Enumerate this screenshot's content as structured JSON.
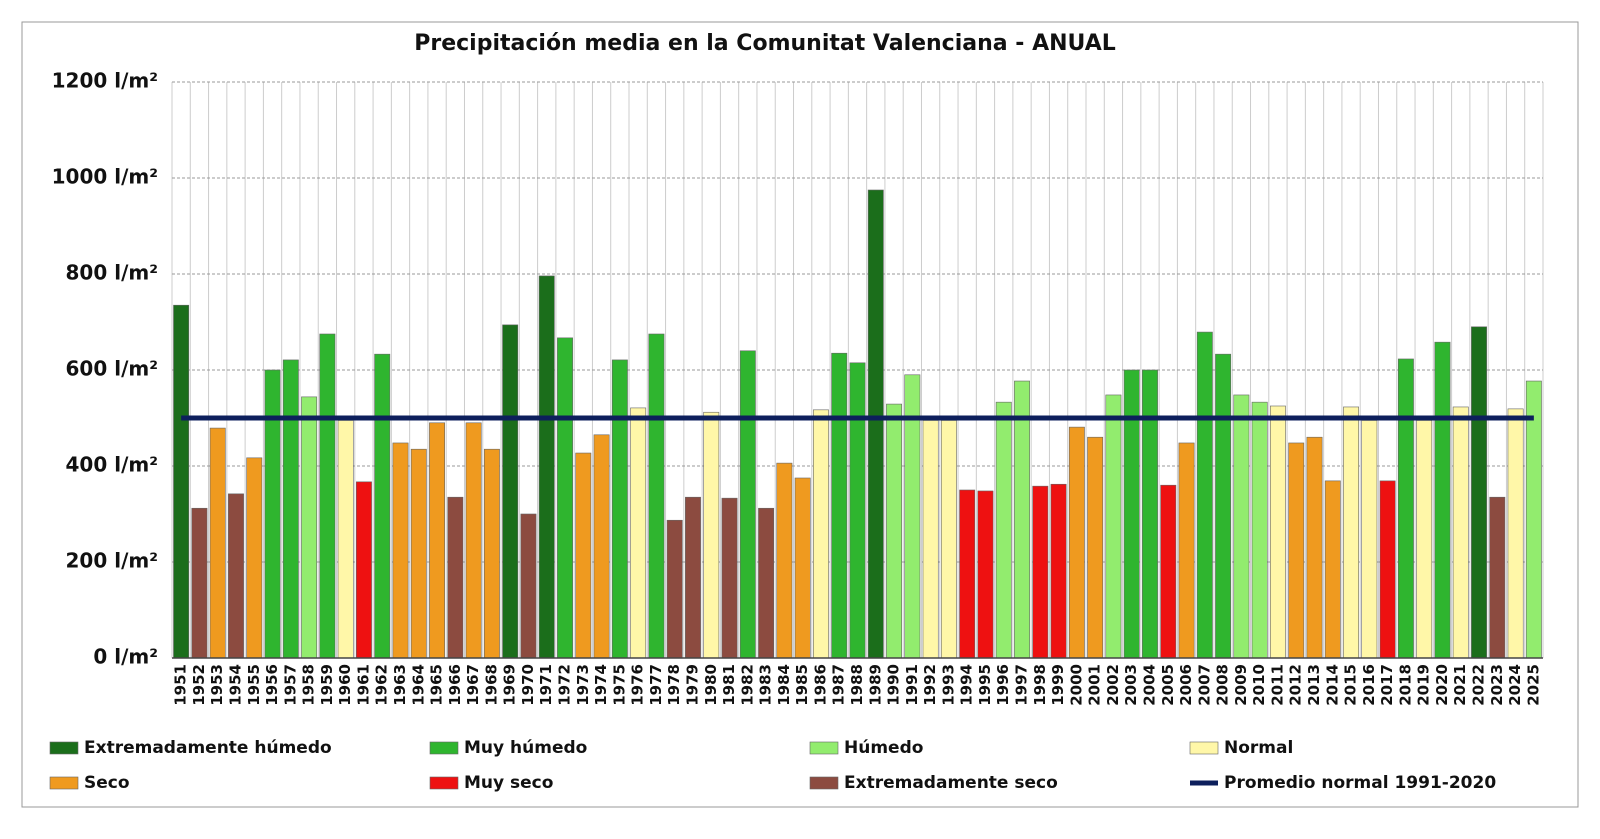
{
  "chart_data": {
    "type": "bar",
    "title": "Precipitación media en la Comunitat Valenciana - ANUAL",
    "categories": [
      "1951",
      "1952",
      "1953",
      "1954",
      "1955",
      "1956",
      "1957",
      "1958",
      "1959",
      "1960",
      "1961",
      "1962",
      "1963",
      "1964",
      "1965",
      "1966",
      "1967",
      "1968",
      "1969",
      "1970",
      "1971",
      "1972",
      "1973",
      "1974",
      "1975",
      "1976",
      "1977",
      "1978",
      "1979",
      "1980",
      "1981",
      "1982",
      "1983",
      "1984",
      "1985",
      "1986",
      "1987",
      "1988",
      "1989",
      "1990",
      "1991",
      "1992",
      "1993",
      "1994",
      "1995",
      "1996",
      "1997",
      "1998",
      "1999",
      "2000",
      "2001",
      "2002",
      "2003",
      "2004",
      "2005",
      "2006",
      "2007",
      "2008",
      "2009",
      "2010",
      "2011",
      "2012",
      "2013",
      "2014",
      "2015",
      "2016",
      "2017",
      "2018",
      "2019",
      "2020",
      "2021",
      "2022",
      "2023",
      "2024",
      "2025"
    ],
    "values": [
      735,
      312,
      479,
      342,
      417,
      600,
      621,
      544,
      675,
      495,
      367,
      633,
      448,
      435,
      490,
      335,
      490,
      435,
      694,
      300,
      796,
      667,
      427,
      465,
      621,
      521,
      675,
      287,
      335,
      512,
      333,
      640,
      312,
      406,
      375,
      517,
      635,
      615,
      975,
      529,
      590,
      495,
      495,
      350,
      348,
      533,
      577,
      358,
      362,
      481,
      460,
      548,
      600,
      600,
      360,
      448,
      679,
      633,
      548,
      533,
      525,
      448,
      460,
      369,
      523,
      495,
      369,
      623,
      495,
      658,
      523,
      690,
      335,
      519,
      577
    ],
    "bar_colors": [
      "#1b6e1b",
      "#8c4b40",
      "#ef9a1f",
      "#8c4b40",
      "#ef9a1f",
      "#2fb52f",
      "#2fb52f",
      "#92ec6e",
      "#2fb52f",
      "#fff7a8",
      "#ee1111",
      "#2fb52f",
      "#ef9a1f",
      "#ef9a1f",
      "#ef9a1f",
      "#8c4b40",
      "#ef9a1f",
      "#ef9a1f",
      "#1b6e1b",
      "#8c4b40",
      "#1b6e1b",
      "#2fb52f",
      "#ef9a1f",
      "#ef9a1f",
      "#2fb52f",
      "#fff7a8",
      "#2fb52f",
      "#8c4b40",
      "#8c4b40",
      "#fff7a8",
      "#8c4b40",
      "#2fb52f",
      "#8c4b40",
      "#ef9a1f",
      "#ef9a1f",
      "#fff7a8",
      "#2fb52f",
      "#2fb52f",
      "#1b6e1b",
      "#92ec6e",
      "#92ec6e",
      "#fff7a8",
      "#fff7a8",
      "#ee1111",
      "#ee1111",
      "#92ec6e",
      "#92ec6e",
      "#ee1111",
      "#ee1111",
      "#ef9a1f",
      "#ef9a1f",
      "#92ec6e",
      "#2fb52f",
      "#2fb52f",
      "#ee1111",
      "#ef9a1f",
      "#2fb52f",
      "#2fb52f",
      "#92ec6e",
      "#92ec6e",
      "#fff7a8",
      "#ef9a1f",
      "#ef9a1f",
      "#ef9a1f",
      "#fff7a8",
      "#fff7a8",
      "#ee1111",
      "#2fb52f",
      "#fff7a8",
      "#2fb52f",
      "#fff7a8",
      "#1b6e1b",
      "#8c4b40",
      "#fff7a8",
      "#92ec6e"
    ],
    "legend": [
      {
        "name": "Extremadamente húmedo",
        "color": "#1b6e1b"
      },
      {
        "name": "Muy húmedo",
        "color": "#2fb52f"
      },
      {
        "name": "Húmedo",
        "color": "#92ec6e"
      },
      {
        "name": "Normal",
        "color": "#fff7a8"
      },
      {
        "name": "Seco",
        "color": "#ef9a1f"
      },
      {
        "name": "Muy seco",
        "color": "#ee1111"
      },
      {
        "name": "Extremadamente seco",
        "color": "#8c4b40"
      }
    ],
    "reference_line": {
      "name": "Promedio normal 1991-2020",
      "color": "#0d1f5c",
      "value": 500
    },
    "ylim": [
      0,
      1200
    ],
    "yticks": [
      {
        "value": 0,
        "label": "0 l/m²"
      },
      {
        "value": 200,
        "label": "200 l/m²"
      },
      {
        "value": 400,
        "label": "400 l/m²"
      },
      {
        "value": 600,
        "label": "600 l/m²"
      },
      {
        "value": 800,
        "label": "800 l/m²"
      },
      {
        "value": 1000,
        "label": "1000 l/m²"
      },
      {
        "value": 1200,
        "label": "1200 l/m²"
      }
    ],
    "grid": true
  }
}
